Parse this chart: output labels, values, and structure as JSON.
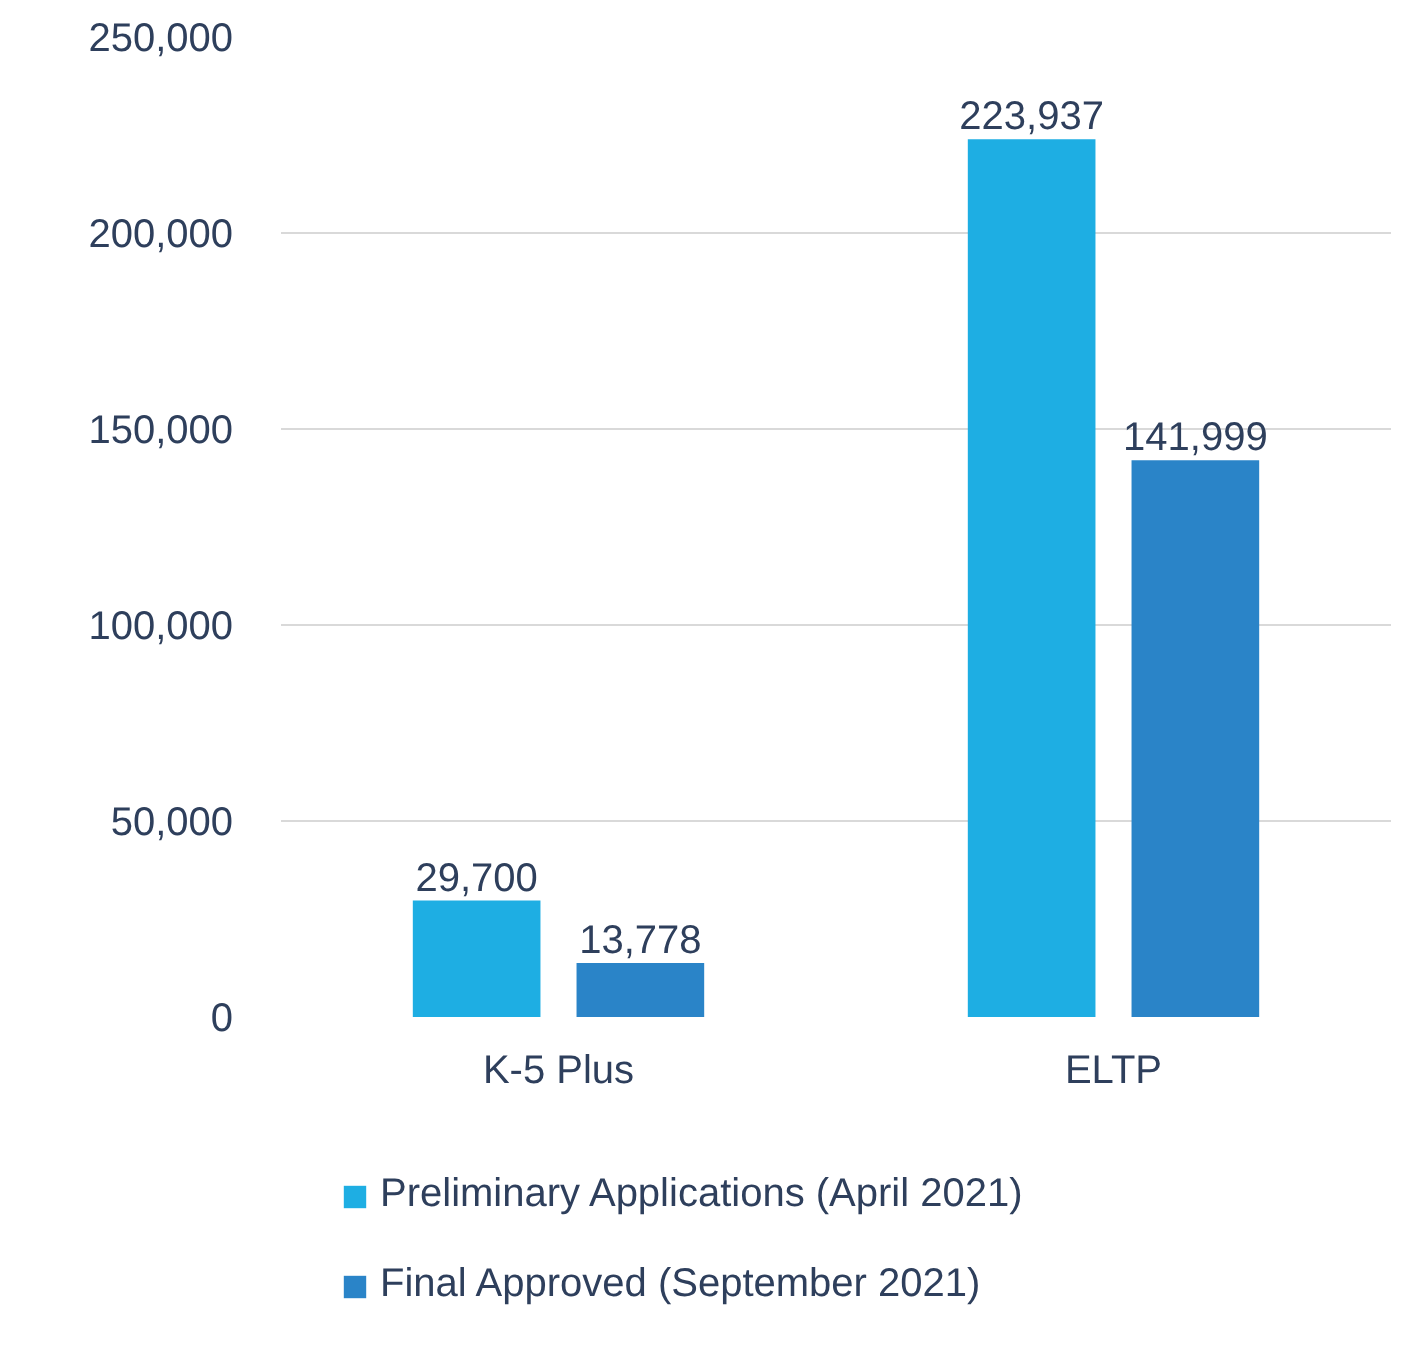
{
  "chart_data": {
    "type": "bar",
    "categories": [
      "K-5 Plus",
      "ELTP"
    ],
    "series": [
      {
        "name": "Preliminary Applications (April 2021)",
        "color": "#1eaee3",
        "values": [
          29700,
          223937
        ],
        "value_labels": [
          "29,700",
          "223,937"
        ]
      },
      {
        "name": "Final Approved (September 2021)",
        "color": "#2a84c8",
        "values": [
          13778,
          141999
        ],
        "value_labels": [
          "13,778",
          "141,999"
        ]
      }
    ],
    "ylim": [
      0,
      250000
    ],
    "yticks": [
      {
        "value": 0,
        "label": "0"
      },
      {
        "value": 50000,
        "label": "50,000"
      },
      {
        "value": 100000,
        "label": "100,000"
      },
      {
        "value": 150000,
        "label": "150,000"
      },
      {
        "value": 200000,
        "label": "200,000"
      },
      {
        "value": 250000,
        "label": "250,000"
      }
    ],
    "grid": "y",
    "legend": "bottom"
  }
}
